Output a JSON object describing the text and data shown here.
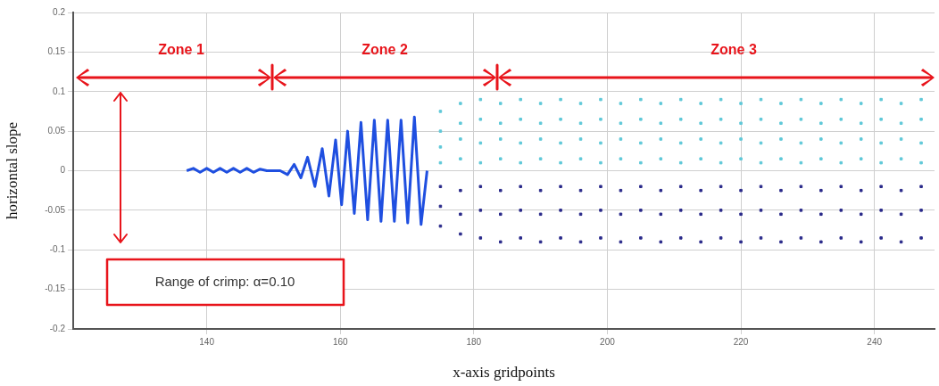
{
  "chart_data": {
    "type": "scatter",
    "xlabel": "x-axis gridpoints",
    "ylabel": "horizontal slope",
    "xlim": [
      120,
      249
    ],
    "xticks": [
      140,
      160,
      180,
      200,
      220,
      240
    ],
    "ylim": [
      -0.2,
      0.2
    ],
    "yticks": [
      -0.2,
      -0.15,
      -0.1,
      -0.05,
      0,
      0.05,
      0.1,
      0.15,
      0.2
    ],
    "grid": true,
    "marker": "square",
    "annotations": [
      "Zone 1",
      "Zone 2",
      "Zone 3",
      "Range of crimp: α=0.10"
    ],
    "series": [
      {
        "type": "line",
        "marker": "none",
        "color": "#1f4fe0",
        "x": [
          137,
          138,
          139,
          140,
          141,
          142,
          143,
          144,
          145,
          146,
          147,
          148,
          149,
          151,
          152.1,
          153.1,
          154.1,
          155.1,
          156.2,
          157.3,
          158.3,
          159.3,
          160.2,
          161.1,
          162.1,
          163.1,
          164.1,
          165.1,
          166.1,
          167.1,
          168.1,
          169.1,
          170.1,
          171.1,
          172.1,
          173
        ],
        "values": [
          0,
          0.003,
          -0.002,
          0.003,
          -0.002,
          0.003,
          -0.002,
          0.003,
          -0.002,
          0.003,
          -0.002,
          0.002,
          0,
          0,
          -0.005,
          0.008,
          -0.009,
          0.017,
          -0.02,
          0.028,
          -0.032,
          0.039,
          -0.043,
          0.05,
          -0.054,
          0.061,
          -0.062,
          0.064,
          -0.064,
          0.064,
          -0.064,
          0.064,
          -0.066,
          0.068,
          -0.068,
          0
        ]
      },
      {
        "color": "#5fc8d8",
        "x": [
          175,
          175,
          175,
          175,
          178,
          178,
          178,
          178,
          181,
          181,
          181,
          181,
          184,
          184,
          184,
          184,
          187,
          187,
          187,
          187,
          190,
          190,
          190,
          190,
          193,
          193,
          193,
          193,
          196,
          196,
          196,
          196,
          199,
          199,
          199,
          199,
          202,
          202,
          202,
          202,
          205,
          205,
          205,
          205,
          208,
          208,
          208,
          208,
          211,
          211,
          211,
          211,
          214,
          214,
          214,
          214,
          217,
          217,
          217,
          217,
          220,
          220,
          220,
          220,
          223,
          223,
          223,
          223,
          226,
          226,
          226,
          226,
          229,
          229,
          229,
          229,
          232,
          232,
          232,
          232,
          235,
          235,
          235,
          235,
          238,
          238,
          238,
          238,
          241,
          241,
          241,
          241,
          244,
          244,
          244,
          244,
          247,
          247,
          247,
          247
        ],
        "values": [
          0.075,
          0.05,
          0.03,
          0.01,
          0.085,
          0.06,
          0.04,
          0.015,
          0.09,
          0.065,
          0.035,
          0.01,
          0.085,
          0.06,
          0.04,
          0.015,
          0.09,
          0.065,
          0.035,
          0.01,
          0.085,
          0.06,
          0.04,
          0.015,
          0.09,
          0.065,
          0.035,
          0.01,
          0.085,
          0.06,
          0.04,
          0.015,
          0.09,
          0.065,
          0.035,
          0.01,
          0.085,
          0.06,
          0.04,
          0.015,
          0.09,
          0.065,
          0.035,
          0.01,
          0.085,
          0.06,
          0.04,
          0.015,
          0.09,
          0.065,
          0.035,
          0.01,
          0.085,
          0.06,
          0.04,
          0.015,
          0.09,
          0.065,
          0.035,
          0.01,
          0.085,
          0.06,
          0.04,
          0.015,
          0.09,
          0.065,
          0.035,
          0.01,
          0.085,
          0.06,
          0.04,
          0.015,
          0.09,
          0.065,
          0.035,
          0.01,
          0.085,
          0.06,
          0.04,
          0.015,
          0.09,
          0.065,
          0.035,
          0.01,
          0.085,
          0.06,
          0.04,
          0.015,
          0.09,
          0.065,
          0.035,
          0.01,
          0.085,
          0.06,
          0.04,
          0.015,
          0.09,
          0.065,
          0.035,
          0.01
        ]
      },
      {
        "color": "#2a2a8a",
        "x": [
          175,
          175,
          175,
          178,
          178,
          178,
          181,
          181,
          181,
          184,
          184,
          184,
          187,
          187,
          187,
          190,
          190,
          190,
          193,
          193,
          193,
          196,
          196,
          196,
          199,
          199,
          199,
          202,
          202,
          202,
          205,
          205,
          205,
          208,
          208,
          208,
          211,
          211,
          211,
          214,
          214,
          214,
          217,
          217,
          217,
          220,
          220,
          220,
          223,
          223,
          223,
          226,
          226,
          226,
          229,
          229,
          229,
          232,
          232,
          232,
          235,
          235,
          235,
          238,
          238,
          238,
          241,
          241,
          241,
          244,
          244,
          244,
          247,
          247,
          247
        ],
        "values": [
          -0.02,
          -0.045,
          -0.07,
          -0.025,
          -0.055,
          -0.08,
          -0.02,
          -0.05,
          -0.085,
          -0.025,
          -0.055,
          -0.09,
          -0.02,
          -0.05,
          -0.085,
          -0.025,
          -0.055,
          -0.09,
          -0.02,
          -0.05,
          -0.085,
          -0.025,
          -0.055,
          -0.09,
          -0.02,
          -0.05,
          -0.085,
          -0.025,
          -0.055,
          -0.09,
          -0.02,
          -0.05,
          -0.085,
          -0.025,
          -0.055,
          -0.09,
          -0.02,
          -0.05,
          -0.085,
          -0.025,
          -0.055,
          -0.09,
          -0.02,
          -0.05,
          -0.085,
          -0.025,
          -0.055,
          -0.09,
          -0.02,
          -0.05,
          -0.085,
          -0.025,
          -0.055,
          -0.09,
          -0.02,
          -0.05,
          -0.085,
          -0.025,
          -0.055,
          -0.09,
          -0.02,
          -0.05,
          -0.085,
          -0.025,
          -0.055,
          -0.09,
          -0.02,
          -0.05,
          -0.085,
          -0.025,
          -0.055,
          -0.09,
          -0.02,
          -0.05,
          -0.085
        ]
      }
    ]
  }
}
